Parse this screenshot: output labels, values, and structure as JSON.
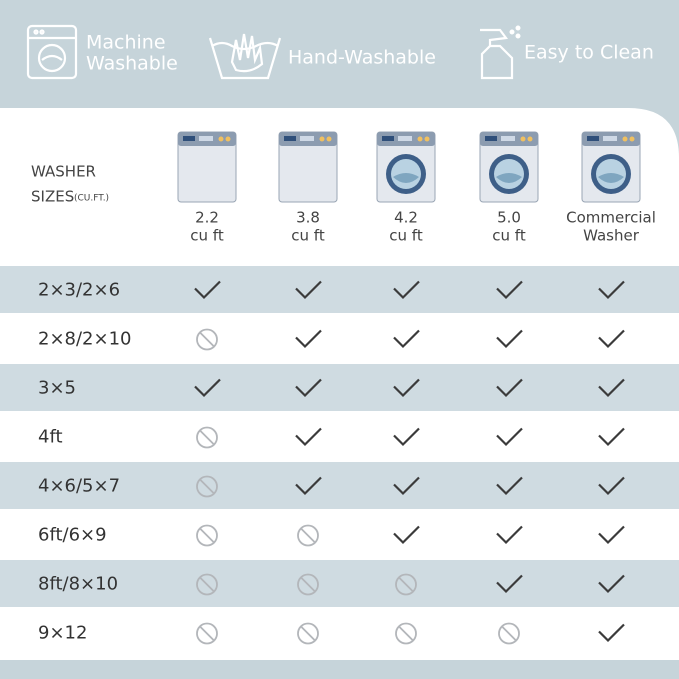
{
  "badges": [
    {
      "lines": [
        "Machine",
        "Washable"
      ]
    },
    {
      "lines": [
        "Hand-Washable"
      ]
    },
    {
      "lines": [
        "Easy to Clean"
      ]
    }
  ],
  "table": {
    "corner": [
      "WASHER",
      "SIZES",
      "(CU.FT.)"
    ],
    "columns": [
      [
        "2.2",
        "cu ft"
      ],
      [
        "3.8",
        "cu ft"
      ],
      [
        "4.2",
        "cu ft"
      ],
      [
        "5.0",
        "cu ft"
      ],
      [
        "Commercial",
        "Washer"
      ]
    ],
    "rows": [
      {
        "label": "2×3/2×6",
        "fits": [
          true,
          true,
          true,
          true,
          true
        ]
      },
      {
        "label": "2×8/2×10",
        "fits": [
          false,
          true,
          true,
          true,
          true
        ]
      },
      {
        "label": "3×5",
        "fits": [
          true,
          true,
          true,
          true,
          true
        ]
      },
      {
        "label": "4ft",
        "fits": [
          false,
          true,
          true,
          true,
          true
        ]
      },
      {
        "label": "4×6/5×7",
        "fits": [
          false,
          true,
          true,
          true,
          true
        ]
      },
      {
        "label": "6ft/6×9",
        "fits": [
          false,
          false,
          true,
          true,
          true
        ]
      },
      {
        "label": "8ft/8×10",
        "fits": [
          false,
          false,
          false,
          true,
          true
        ]
      },
      {
        "label": "9×12",
        "fits": [
          false,
          false,
          false,
          false,
          true
        ]
      }
    ]
  }
}
